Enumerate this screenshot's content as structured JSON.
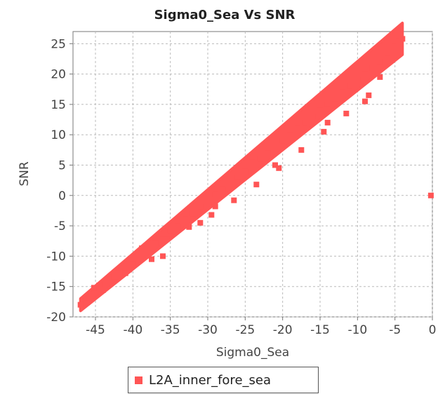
{
  "chart_data": {
    "type": "scatter",
    "title": "Sigma0_Sea Vs SNR",
    "xlabel": "Sigma0_Sea",
    "ylabel": "SNR",
    "xlim": [
      -48,
      0
    ],
    "ylim": [
      -20,
      27
    ],
    "xticks": [
      -45,
      -40,
      -35,
      -30,
      -25,
      -20,
      -15,
      -10,
      -5,
      0
    ],
    "yticks": [
      25,
      20,
      15,
      10,
      5,
      0,
      -5,
      -10,
      -15,
      -20
    ],
    "grid": true,
    "legend_position": "bottom",
    "series": [
      {
        "name": "L2A_inner_fore_sea",
        "color": "#ff5555",
        "points": [
          [
            -47,
            -18
          ],
          [
            -46.2,
            -17.7
          ],
          [
            -45.2,
            -15.2
          ],
          [
            -44.5,
            -14.8
          ],
          [
            -44,
            -15.6
          ],
          [
            -43.5,
            -14
          ],
          [
            -42.5,
            -13.4
          ],
          [
            -42,
            -12.8
          ],
          [
            -41,
            -12.6
          ],
          [
            -40,
            -11.3
          ],
          [
            -39,
            -10.3
          ],
          [
            -38,
            -9.2
          ],
          [
            -38.8,
            -8.7
          ],
          [
            -37,
            -7.9
          ],
          [
            -36,
            -7.2
          ],
          [
            -35,
            -5.9
          ],
          [
            -34,
            -5
          ],
          [
            -33,
            -3.9
          ],
          [
            -32,
            -3
          ],
          [
            -31,
            -1.8
          ],
          [
            -30,
            -1
          ],
          [
            -29,
            0.2
          ],
          [
            -28,
            1
          ],
          [
            -27,
            2
          ],
          [
            -26,
            3
          ],
          [
            -25,
            4
          ],
          [
            -24,
            5
          ],
          [
            -23,
            6
          ],
          [
            -22,
            7
          ],
          [
            -21,
            8
          ],
          [
            -20,
            9
          ],
          [
            -19,
            10
          ],
          [
            -18,
            11
          ],
          [
            -17,
            12
          ],
          [
            -16,
            13
          ],
          [
            -15,
            14
          ],
          [
            -14,
            15
          ],
          [
            -13,
            16
          ],
          [
            -12,
            17
          ],
          [
            -11,
            18
          ],
          [
            -10,
            19
          ],
          [
            -9,
            20
          ],
          [
            -8,
            21
          ],
          [
            -7,
            22
          ],
          [
            -6,
            23.5
          ],
          [
            -5,
            24.5
          ],
          [
            -4.5,
            25.3
          ],
          [
            -4,
            25.8
          ],
          [
            -40.5,
            -12.2
          ],
          [
            -37.5,
            -10.5
          ],
          [
            -35.5,
            -7.2
          ],
          [
            -32.5,
            -5.2
          ],
          [
            -29.5,
            -3.2
          ],
          [
            -26.5,
            -0.8
          ],
          [
            -23.5,
            1.8
          ],
          [
            -20.5,
            4.5
          ],
          [
            -17.5,
            7.5
          ],
          [
            -14.5,
            10.5
          ],
          [
            -11.5,
            13.5
          ],
          [
            -8.5,
            16.5
          ],
          [
            -29,
            -1.8
          ],
          [
            -24,
            5.5
          ],
          [
            -21,
            5
          ],
          [
            -14,
            12
          ],
          [
            -9,
            15.5
          ],
          [
            -7,
            19.5
          ],
          [
            -41,
            -12.8
          ],
          [
            -36,
            -10
          ],
          [
            -31,
            -4.5
          ],
          [
            -0.2,
            0
          ]
        ]
      }
    ]
  },
  "legend": {
    "label": "L2A_inner_fore_sea",
    "color": "#ff5555"
  }
}
